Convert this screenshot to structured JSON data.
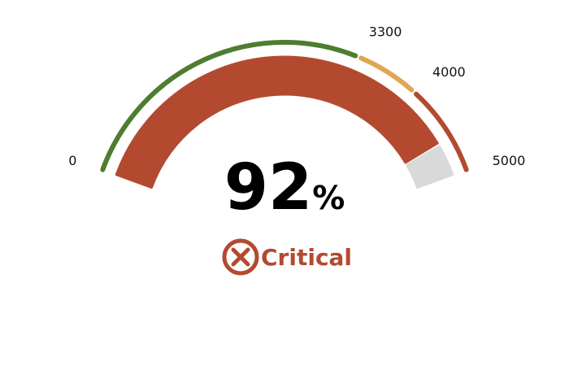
{
  "gauge": {
    "value_percent": 92,
    "value_text": "92",
    "unit": "%",
    "status_label": "Critical",
    "status_icon": "x-circle-icon",
    "min": 0,
    "max": 5000,
    "ticks": [
      {
        "value": 0,
        "label": "0"
      },
      {
        "value": 3300,
        "label": "3300"
      },
      {
        "value": 4000,
        "label": "4000"
      },
      {
        "value": 5000,
        "label": "5000"
      }
    ],
    "bands": [
      {
        "from": 0,
        "to": 3300,
        "color": "#4e7d2f"
      },
      {
        "from": 3300,
        "to": 4000,
        "color": "#e2a552"
      },
      {
        "from": 4000,
        "to": 5000,
        "color": "#b34a30"
      }
    ],
    "colors": {
      "fill": "#b34a30",
      "track": "#d9d9d9",
      "status": "#b34a30",
      "value_text": "#000000"
    }
  }
}
